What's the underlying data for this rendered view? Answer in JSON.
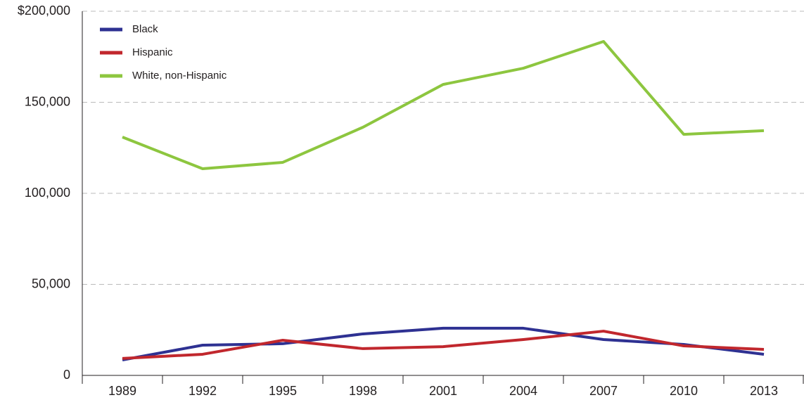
{
  "chart_data": {
    "type": "line",
    "categories": [
      "1989",
      "1992",
      "1995",
      "1998",
      "2001",
      "2004",
      "2007",
      "2010",
      "2013"
    ],
    "series": [
      {
        "name": "Black",
        "color": "#2e3192",
        "values": [
          8500,
          16600,
          17400,
          22800,
          25900,
          25900,
          19700,
          17000,
          11600
        ]
      },
      {
        "name": "Hispanic",
        "color": "#c1272d",
        "values": [
          9300,
          11600,
          19300,
          14700,
          15800,
          19700,
          24300,
          16200,
          14300
        ]
      },
      {
        "name": "White, non-Hispanic",
        "color": "#8dc63f",
        "values": [
          130900,
          113500,
          117000,
          136300,
          159800,
          168700,
          183400,
          132400,
          134400
        ]
      }
    ],
    "ylim": [
      0,
      200000
    ],
    "yticks": [
      0,
      {
        "value": 50000,
        "label": "50,000"
      },
      {
        "value": 100000,
        "label": "100,000"
      },
      {
        "value": 150000,
        "label": "150,000"
      },
      {
        "value": 200000,
        "label": "$200,000"
      }
    ],
    "grid": true,
    "legend": "upper left"
  }
}
